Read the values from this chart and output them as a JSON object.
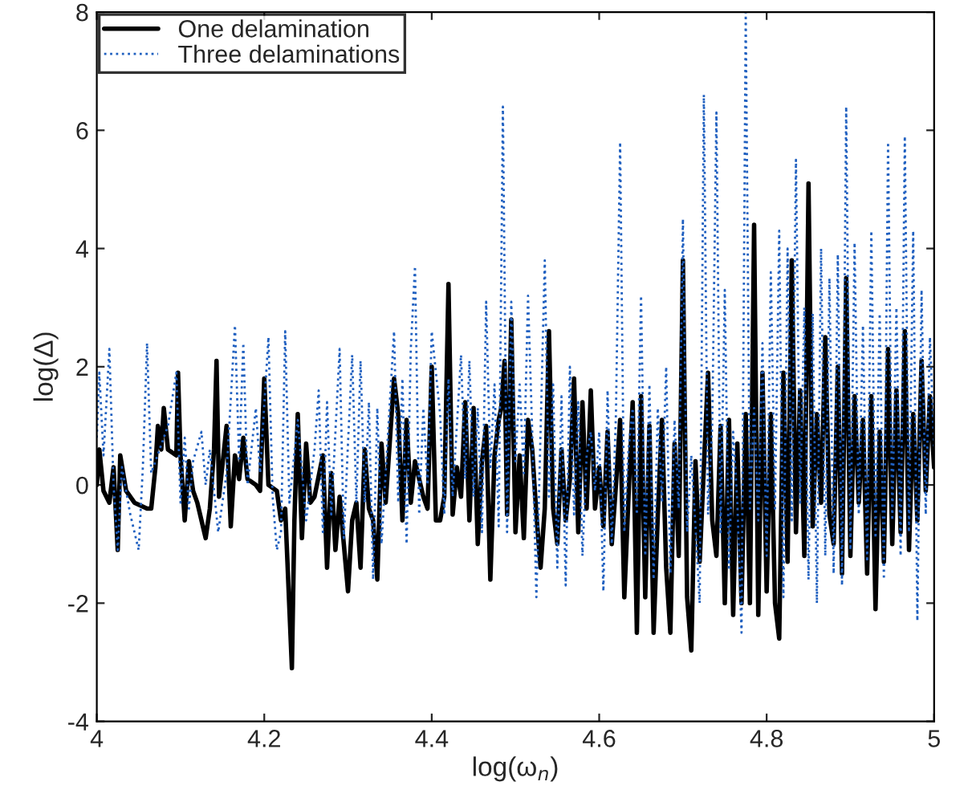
{
  "chart_data": {
    "type": "line",
    "xlabel": "log(ω$_{n}$)",
    "ylabel": "log(Δ)",
    "xlim": [
      4,
      5
    ],
    "ylim": [
      -4,
      8
    ],
    "xticks": [
      4,
      4.2,
      4.4,
      4.6,
      4.8,
      5
    ],
    "yticks": [
      -4,
      -2,
      0,
      2,
      4,
      6,
      8
    ],
    "grid": false,
    "legend": "top left",
    "marker": "none",
    "series": [
      {
        "name": "One delamination",
        "color": "#000000",
        "line_style": "solid",
        "x": [
          4.0,
          4.003,
          4.008,
          4.015,
          4.02,
          4.025,
          4.028,
          4.035,
          4.045,
          4.06,
          4.065,
          4.07,
          4.073,
          4.077,
          4.08,
          4.085,
          4.095,
          4.097,
          4.1,
          4.105,
          4.11,
          4.115,
          4.12,
          4.13,
          4.135,
          4.14,
          4.143,
          4.146,
          4.155,
          4.16,
          4.165,
          4.17,
          4.175,
          4.18,
          4.19,
          4.195,
          4.2,
          4.205,
          4.215,
          4.22,
          4.225,
          4.233,
          4.236,
          4.24,
          4.245,
          4.25,
          4.255,
          4.26,
          4.27,
          4.275,
          4.28,
          4.285,
          4.29,
          4.295,
          4.3,
          4.305,
          4.31,
          4.315,
          4.32,
          4.325,
          4.33,
          4.335,
          4.34,
          4.345,
          4.355,
          4.36,
          4.365,
          4.37,
          4.375,
          4.38,
          4.39,
          4.395,
          4.4,
          4.405,
          4.41,
          4.415,
          4.42,
          4.425,
          4.43,
          4.435,
          4.44,
          4.445,
          4.45,
          4.455,
          4.46,
          4.465,
          4.47,
          4.475,
          4.48,
          4.483,
          4.487,
          4.49,
          4.495,
          4.5,
          4.505,
          4.51,
          4.515,
          4.52,
          4.525,
          4.53,
          4.535,
          4.54,
          4.545,
          4.55,
          4.555,
          4.56,
          4.565,
          4.57,
          4.575,
          4.58,
          4.585,
          4.59,
          4.595,
          4.6,
          4.605,
          4.61,
          4.615,
          4.62,
          4.625,
          4.63,
          4.635,
          4.64,
          4.645,
          4.65,
          4.655,
          4.66,
          4.665,
          4.67,
          4.675,
          4.68,
          4.685,
          4.69,
          4.695,
          4.7,
          4.705,
          4.71,
          4.715,
          4.72,
          4.73,
          4.735,
          4.74,
          4.745,
          4.75,
          4.755,
          4.76,
          4.765,
          4.77,
          4.775,
          4.78,
          4.785,
          4.79,
          4.795,
          4.8,
          4.805,
          4.81,
          4.815,
          4.82,
          4.825,
          4.83,
          4.835,
          4.84,
          4.845,
          4.85,
          4.855,
          4.86,
          4.865,
          4.87,
          4.875,
          4.88,
          4.885,
          4.89,
          4.895,
          4.9,
          4.905,
          4.91,
          4.915,
          4.92,
          4.925,
          4.93,
          4.935,
          4.94,
          4.945,
          4.95,
          4.955,
          4.96,
          4.965,
          4.97,
          4.975,
          4.98,
          4.985,
          4.99,
          4.995,
          5.0
        ],
        "values": [
          0.0,
          0.6,
          -0.1,
          -0.3,
          0.3,
          -1.1,
          0.5,
          -0.1,
          -0.3,
          -0.4,
          -0.4,
          0.3,
          1.0,
          0.6,
          1.3,
          0.6,
          0.5,
          1.9,
          0.5,
          -0.6,
          0.4,
          -0.1,
          -0.3,
          -0.9,
          -0.4,
          0.6,
          2.1,
          -0.2,
          1.0,
          -0.7,
          0.5,
          0.1,
          0.8,
          0.1,
          0.0,
          -0.1,
          1.8,
          0.0,
          -0.1,
          -0.6,
          -0.4,
          -3.1,
          -0.6,
          1.2,
          -0.9,
          0.7,
          -0.3,
          -0.2,
          0.5,
          -1.4,
          0.2,
          -1.1,
          -0.2,
          -1.0,
          -1.8,
          -0.6,
          -0.3,
          -1.4,
          0.6,
          -0.4,
          -0.6,
          -1.6,
          0.7,
          -0.3,
          1.8,
          1.2,
          -0.6,
          1.1,
          -0.3,
          0.4,
          -0.2,
          -0.4,
          2.0,
          -0.6,
          -0.6,
          -0.2,
          3.4,
          -0.5,
          0.3,
          -0.2,
          1.4,
          -0.6,
          1.3,
          -1.0,
          0.4,
          1.0,
          -1.6,
          0.5,
          1.1,
          1.3,
          2.1,
          -0.5,
          2.8,
          -0.8,
          0.5,
          -0.9,
          1.1,
          0.6,
          -0.5,
          -1.4,
          -0.4,
          2.6,
          -0.4,
          -1.0,
          0.6,
          -0.6,
          0.1,
          1.8,
          -0.8,
          1.4,
          -0.4,
          1.6,
          -0.4,
          0.3,
          -0.7,
          0.9,
          -1.0,
          0.0,
          1.1,
          -1.9,
          -0.2,
          1.4,
          -2.5,
          1.5,
          -1.9,
          1.0,
          -2.5,
          -0.5,
          1.1,
          -1.4,
          -2.5,
          0.7,
          -1.2,
          3.8,
          -1.9,
          -2.8,
          0.4,
          -1.3,
          1.9,
          -0.6,
          -1.2,
          1.0,
          -2.0,
          1.1,
          -2.2,
          0.7,
          -2.0,
          1.2,
          -2.0,
          4.4,
          -2.2,
          1.9,
          -1.8,
          1.2,
          -2.0,
          -2.6,
          1.9,
          -1.3,
          3.8,
          -0.8,
          1.6,
          -1.2,
          5.1,
          -0.7,
          1.2,
          -0.3,
          2.5,
          -0.5,
          -1.0,
          2.0,
          -1.5,
          3.5,
          -1.2,
          1.5,
          -0.3,
          1.1,
          -1.5,
          1.5,
          -2.1,
          0.9,
          -1.3,
          2.3,
          -1.0,
          1.6,
          -0.8,
          2.6,
          -1.1,
          1.2,
          -0.6,
          2.1,
          -0.1,
          1.5,
          0.3
        ]
      },
      {
        "name": "Three delaminations",
        "color": "#2060c0",
        "line_style": "dotted",
        "x": [
          4.0,
          4.003,
          4.008,
          4.015,
          4.02,
          4.025,
          4.03,
          4.04,
          4.05,
          4.055,
          4.06,
          4.065,
          4.075,
          4.085,
          4.095,
          4.1,
          4.105,
          4.11,
          4.115,
          4.125,
          4.13,
          4.135,
          4.145,
          4.155,
          4.165,
          4.17,
          4.175,
          4.18,
          4.19,
          4.195,
          4.205,
          4.21,
          4.215,
          4.22,
          4.225,
          4.23,
          4.24,
          4.25,
          4.26,
          4.265,
          4.27,
          4.275,
          4.28,
          4.29,
          4.295,
          4.3,
          4.305,
          4.31,
          4.315,
          4.32,
          4.325,
          4.33,
          4.335,
          4.34,
          4.35,
          4.355,
          4.36,
          4.365,
          4.37,
          4.375,
          4.38,
          4.385,
          4.39,
          4.395,
          4.4,
          4.41,
          4.415,
          4.42,
          4.425,
          4.435,
          4.44,
          4.445,
          4.45,
          4.455,
          4.46,
          4.465,
          4.47,
          4.475,
          4.48,
          4.485,
          4.49,
          4.495,
          4.5,
          4.505,
          4.51,
          4.515,
          4.52,
          4.525,
          4.53,
          4.535,
          4.54,
          4.545,
          4.55,
          4.555,
          4.56,
          4.565,
          4.57,
          4.575,
          4.58,
          4.585,
          4.59,
          4.595,
          4.6,
          4.605,
          4.61,
          4.615,
          4.62,
          4.625,
          4.63,
          4.635,
          4.64,
          4.645,
          4.65,
          4.655,
          4.66,
          4.665,
          4.67,
          4.675,
          4.68,
          4.685,
          4.69,
          4.695,
          4.7,
          4.705,
          4.71,
          4.715,
          4.72,
          4.725,
          4.73,
          4.735,
          4.74,
          4.745,
          4.75,
          4.755,
          4.76,
          4.765,
          4.77,
          4.775,
          4.78,
          4.785,
          4.79,
          4.795,
          4.8,
          4.805,
          4.81,
          4.815,
          4.82,
          4.825,
          4.83,
          4.835,
          4.84,
          4.845,
          4.85,
          4.855,
          4.86,
          4.865,
          4.87,
          4.875,
          4.88,
          4.885,
          4.89,
          4.895,
          4.9,
          4.905,
          4.91,
          4.915,
          4.92,
          4.925,
          4.93,
          4.935,
          4.94,
          4.945,
          4.95,
          4.955,
          4.96,
          4.965,
          4.97,
          4.975,
          4.98,
          4.985,
          4.99,
          4.995,
          5.0
        ],
        "values": [
          0.8,
          1.9,
          0.5,
          2.3,
          0.0,
          -1.1,
          0.3,
          -0.5,
          -1.1,
          0.3,
          2.4,
          0.2,
          0.6,
          1.0,
          1.9,
          -0.3,
          0.8,
          -0.4,
          0.4,
          0.9,
          0.0,
          0.6,
          -0.8,
          0.2,
          2.7,
          0.4,
          2.4,
          0.0,
          1.3,
          0.2,
          2.5,
          -0.2,
          -1.1,
          -0.8,
          2.6,
          -0.3,
          1.1,
          -0.6,
          0.6,
          1.6,
          -0.8,
          1.4,
          -0.5,
          2.3,
          -0.9,
          0.7,
          2.2,
          -0.3,
          2.1,
          -0.3,
          1.4,
          -1.6,
          1.3,
          -1.0,
          1.4,
          2.6,
          -0.3,
          1.8,
          -1.0,
          2.3,
          3.7,
          -0.5,
          1.3,
          0.0,
          2.6,
          1.2,
          -0.5,
          1.8,
          -0.2,
          2.2,
          0.1,
          2.1,
          -0.2,
          1.3,
          -0.8,
          3.1,
          0.3,
          1.7,
          -0.7,
          6.4,
          -0.8,
          3.1,
          0.4,
          1.7,
          0.2,
          3.2,
          0.9,
          -1.9,
          0.9,
          3.8,
          -0.2,
          1.7,
          -1.4,
          1.5,
          -1.7,
          2.0,
          -0.5,
          1.4,
          -1.2,
          0.5,
          0.9,
          -0.1,
          0.9,
          -1.8,
          1.6,
          -1.0,
          1.2,
          5.8,
          -0.8,
          0.6,
          1.3,
          -0.5,
          3.2,
          -1.2,
          1.7,
          -1.6,
          1.3,
          -0.3,
          2.0,
          -1.5,
          1.1,
          -0.4,
          4.5,
          -0.8,
          0.5,
          -0.7,
          -2.0,
          6.6,
          -0.5,
          1.0,
          6.3,
          -0.8,
          3.3,
          -1.4,
          0.9,
          -0.3,
          -2.5,
          8.0,
          -0.4,
          1.3,
          -0.6,
          2.4,
          -1.2,
          3.6,
          -0.4,
          4.3,
          -1.9,
          4.0,
          -0.6,
          5.5,
          -0.3,
          3.0,
          -1.6,
          2.9,
          -2.0,
          4.0,
          -1.2,
          3.5,
          -1.5,
          3.9,
          -1.7,
          6.4,
          -1.1,
          4.1,
          -0.5,
          2.7,
          -1.3,
          4.3,
          -0.9,
          2.9,
          -1.6,
          5.8,
          -0.6,
          3.0,
          -1.2,
          5.9,
          -0.8,
          4.3,
          -2.3,
          3.3,
          -0.5,
          2.5,
          0.6
        ]
      }
    ]
  }
}
